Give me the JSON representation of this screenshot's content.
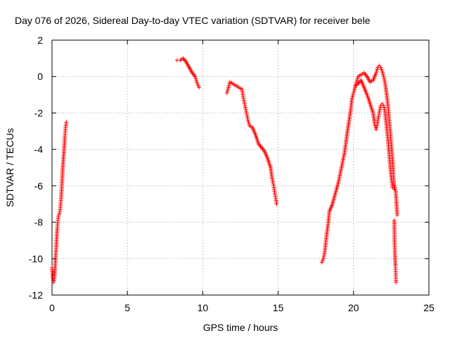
{
  "chart_data": {
    "type": "scatter",
    "title": "Day 076 of 2026, Sidereal Day-to-day VTEC variation (SDTVAR) for receiver bele",
    "xlabel": "GPS time / hours",
    "ylabel": "SDTVAR / TECUs",
    "xlim": [
      0,
      25
    ],
    "ylim": [
      -12,
      2
    ],
    "xticks": [
      0,
      5,
      10,
      15,
      20,
      25
    ],
    "yticks": [
      -12,
      -10,
      -8,
      -6,
      -4,
      -2,
      0,
      2
    ],
    "grid": true,
    "marker": "+",
    "color": "#ff0000",
    "segments": [
      {
        "name": "segment-1",
        "points": [
          [
            0.0,
            -10.5
          ],
          [
            0.05,
            -11.0
          ],
          [
            0.1,
            -11.3
          ],
          [
            0.15,
            -11.1
          ],
          [
            0.2,
            -10.5
          ],
          [
            0.25,
            -9.8
          ],
          [
            0.3,
            -9.0
          ],
          [
            0.35,
            -8.3
          ],
          [
            0.4,
            -7.8
          ],
          [
            0.45,
            -7.6
          ],
          [
            0.5,
            -7.5
          ],
          [
            0.55,
            -7.2
          ],
          [
            0.6,
            -6.7
          ],
          [
            0.65,
            -6.0
          ],
          [
            0.7,
            -5.2
          ],
          [
            0.75,
            -4.6
          ],
          [
            0.8,
            -4.0
          ],
          [
            0.85,
            -3.3
          ],
          [
            0.9,
            -2.8
          ],
          [
            0.95,
            -2.5
          ]
        ]
      },
      {
        "name": "segment-2",
        "points": [
          [
            8.3,
            0.9
          ],
          [
            8.5,
            0.9
          ],
          [
            8.7,
            1.0
          ],
          [
            8.9,
            0.8
          ],
          [
            9.1,
            0.5
          ],
          [
            9.3,
            0.2
          ],
          [
            9.5,
            0.0
          ],
          [
            9.6,
            -0.3
          ],
          [
            9.7,
            -0.5
          ],
          [
            9.75,
            -0.6
          ]
        ]
      },
      {
        "name": "segment-3",
        "points": [
          [
            11.6,
            -0.9
          ],
          [
            11.7,
            -0.6
          ],
          [
            11.8,
            -0.3
          ],
          [
            12.0,
            -0.4
          ],
          [
            12.2,
            -0.5
          ],
          [
            12.4,
            -0.6
          ],
          [
            12.6,
            -0.7
          ],
          [
            12.7,
            -1.2
          ],
          [
            12.8,
            -1.6
          ],
          [
            12.9,
            -2.0
          ],
          [
            13.0,
            -2.4
          ],
          [
            13.1,
            -2.7
          ],
          [
            13.3,
            -2.8
          ],
          [
            13.5,
            -3.2
          ],
          [
            13.7,
            -3.7
          ],
          [
            13.9,
            -3.9
          ],
          [
            14.1,
            -4.1
          ],
          [
            14.3,
            -4.5
          ],
          [
            14.5,
            -5.0
          ],
          [
            14.6,
            -5.6
          ],
          [
            14.7,
            -6.0
          ],
          [
            14.8,
            -6.5
          ],
          [
            14.9,
            -7.0
          ]
        ]
      },
      {
        "name": "segment-4",
        "points": [
          [
            17.9,
            -10.2
          ],
          [
            18.0,
            -10.0
          ],
          [
            18.1,
            -9.6
          ],
          [
            18.2,
            -8.8
          ],
          [
            18.3,
            -8.2
          ],
          [
            18.4,
            -7.4
          ],
          [
            18.6,
            -7.0
          ],
          [
            18.8,
            -6.4
          ],
          [
            19.0,
            -5.8
          ],
          [
            19.2,
            -5.0
          ],
          [
            19.4,
            -4.2
          ],
          [
            19.6,
            -3.0
          ],
          [
            19.8,
            -1.9
          ],
          [
            19.9,
            -1.2
          ],
          [
            20.0,
            -0.9
          ],
          [
            20.1,
            -0.6
          ],
          [
            20.2,
            -0.3
          ],
          [
            20.3,
            0.0
          ],
          [
            20.5,
            0.1
          ],
          [
            20.7,
            0.2
          ],
          [
            20.9,
            0.0
          ],
          [
            21.1,
            -0.3
          ],
          [
            21.3,
            -0.2
          ],
          [
            21.5,
            0.2
          ],
          [
            21.6,
            0.5
          ],
          [
            21.7,
            0.6
          ],
          [
            21.8,
            0.5
          ],
          [
            21.9,
            0.3
          ],
          [
            22.0,
            0.0
          ],
          [
            22.1,
            -0.4
          ],
          [
            22.2,
            -1.0
          ],
          [
            22.3,
            -1.7
          ],
          [
            22.4,
            -2.7
          ],
          [
            22.5,
            -3.7
          ],
          [
            22.6,
            -4.7
          ],
          [
            22.65,
            -5.5
          ],
          [
            22.7,
            -6.2
          ]
        ]
      },
      {
        "name": "segment-5",
        "points": [
          [
            20.1,
            -0.5
          ],
          [
            20.3,
            -0.4
          ],
          [
            20.5,
            -0.2
          ],
          [
            20.7,
            -0.6
          ],
          [
            20.9,
            -1.0
          ],
          [
            21.1,
            -1.5
          ],
          [
            21.3,
            -2.0
          ],
          [
            21.4,
            -2.6
          ],
          [
            21.5,
            -2.9
          ],
          [
            21.6,
            -2.5
          ],
          [
            21.7,
            -2.0
          ],
          [
            21.8,
            -1.6
          ],
          [
            21.9,
            -1.5
          ],
          [
            22.0,
            -1.6
          ],
          [
            22.1,
            -2.0
          ],
          [
            22.2,
            -2.8
          ],
          [
            22.3,
            -3.6
          ],
          [
            22.4,
            -4.6
          ],
          [
            22.5,
            -5.5
          ],
          [
            22.6,
            -6.1
          ],
          [
            22.7,
            -6.0
          ],
          [
            22.8,
            -6.3
          ],
          [
            22.85,
            -7.0
          ],
          [
            22.9,
            -7.6
          ]
        ]
      },
      {
        "name": "segment-6",
        "points": [
          [
            22.7,
            -7.9
          ],
          [
            22.72,
            -8.9
          ],
          [
            22.75,
            -9.8
          ],
          [
            22.78,
            -10.4
          ],
          [
            22.8,
            -10.9
          ],
          [
            22.82,
            -11.3
          ]
        ]
      }
    ]
  }
}
